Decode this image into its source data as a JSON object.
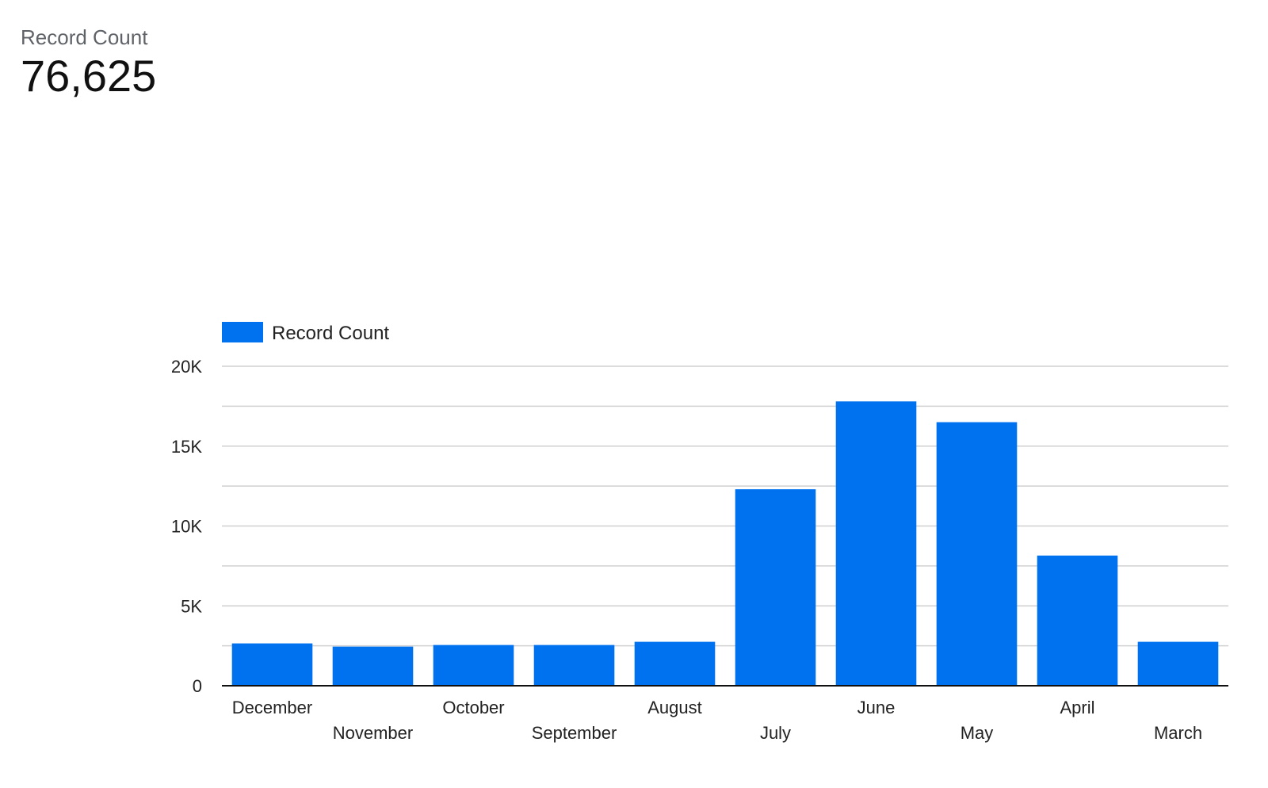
{
  "scorecard": {
    "label": "Record Count",
    "value": "76,625"
  },
  "chart_data": {
    "type": "bar",
    "title": "",
    "xlabel": "",
    "ylabel": "",
    "legend": [
      "Record Count"
    ],
    "legend_position": "top-left",
    "grid": true,
    "ylim": [
      0,
      20000
    ],
    "yticks": [
      0,
      5000,
      10000,
      15000,
      20000
    ],
    "ytick_labels": [
      "0",
      "5K",
      "10K",
      "15K",
      "20K"
    ],
    "categories": [
      "December",
      "November",
      "October",
      "September",
      "August",
      "July",
      "June",
      "May",
      "April",
      "March"
    ],
    "series": [
      {
        "name": "Record Count",
        "color": "#0072ef",
        "values": [
          2650,
          2450,
          2550,
          2550,
          2750,
          12300,
          17800,
          16500,
          8150,
          2750
        ]
      }
    ]
  }
}
